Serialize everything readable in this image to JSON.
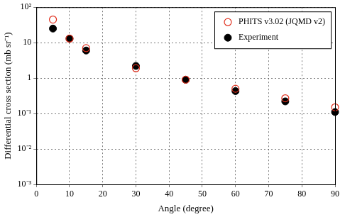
{
  "chart_data": {
    "type": "scatter",
    "x_label": "Angle (degree)",
    "y_label": "Differential cross section (mb sr⁻¹)",
    "x": [
      5,
      10,
      15,
      30,
      45,
      60,
      75,
      90
    ],
    "series": [
      {
        "name": "PHITS v3.02 (JQMD v2)",
        "color": "#e0301e",
        "marker": "circle_open",
        "values": [
          45,
          13,
          7,
          1.9,
          0.9,
          0.5,
          0.27,
          0.15
        ]
      },
      {
        "name": "Experiment",
        "color": "#000000",
        "marker": "circle",
        "values": [
          25,
          13,
          6,
          2.2,
          0.9,
          0.43,
          0.22,
          0.11
        ]
      }
    ],
    "xlim": [
      0,
      90
    ],
    "xticks": [
      0,
      10,
      20,
      30,
      40,
      50,
      60,
      70,
      80,
      90
    ],
    "ylim": [
      0.001,
      100
    ],
    "yticks": [
      {
        "value": 0.001,
        "label": "10⁻³"
      },
      {
        "value": 0.01,
        "label": "10⁻²"
      },
      {
        "value": 0.1,
        "label": "10⁻¹"
      },
      1,
      10,
      {
        "value": 100,
        "label": "10²"
      }
    ],
    "log": "y",
    "grid": true,
    "legend": "upper right"
  }
}
